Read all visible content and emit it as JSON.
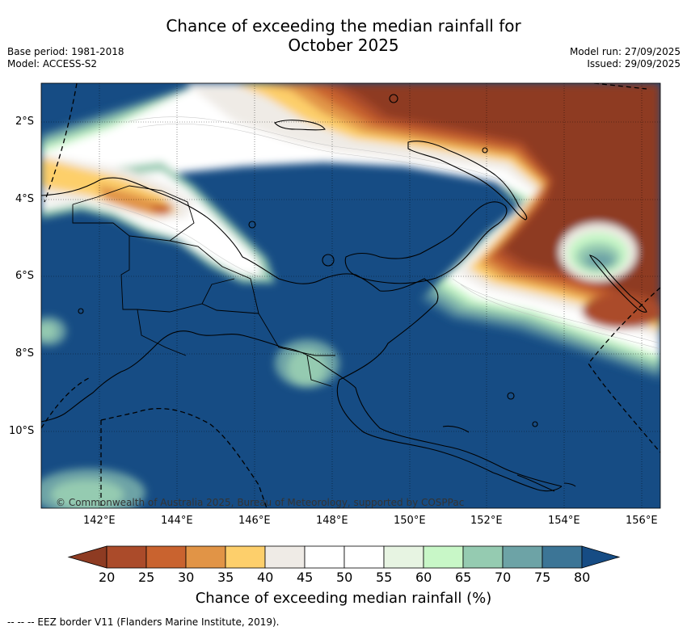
{
  "title_line1": "Chance of exceeding the median rainfall for",
  "title_line2": "October 2025",
  "meta": {
    "base_period": "Base period: 1981-2018",
    "model": "Model: ACCESS-S2",
    "model_run": "Model run: 27/09/2025",
    "issued": "Issued: 29/09/2025"
  },
  "map": {
    "region": "Papua New Guinea",
    "lat_labels": [
      "2°S",
      "4°S",
      "6°S",
      "8°S",
      "10°S"
    ],
    "lon_labels": [
      "142°E",
      "144°E",
      "146°E",
      "148°E",
      "150°E",
      "152°E",
      "154°E",
      "156°E"
    ],
    "copyright": "© Commonwealth of Australia 2025, Bureau of Meteorology, supported by COSPPac"
  },
  "colorbar": {
    "ticks": [
      "20",
      "25",
      "30",
      "35",
      "40",
      "45",
      "50",
      "55",
      "60",
      "65",
      "70",
      "75",
      "80"
    ],
    "colors": [
      "#8e3b22",
      "#ab4b2a",
      "#c9632f",
      "#e19446",
      "#fdcf6b",
      "#efebe6",
      "#ffffff",
      "#ffffff",
      "#e7f4e2",
      "#c8f7c7",
      "#95cbb1",
      "#6da3a6",
      "#3c7596",
      "#164c84"
    ],
    "title": "Chance of exceeding median rainfall (%)"
  },
  "footnote": "-- -- -- EEZ border V11 (Flanders Marine Institute, 2019)."
}
